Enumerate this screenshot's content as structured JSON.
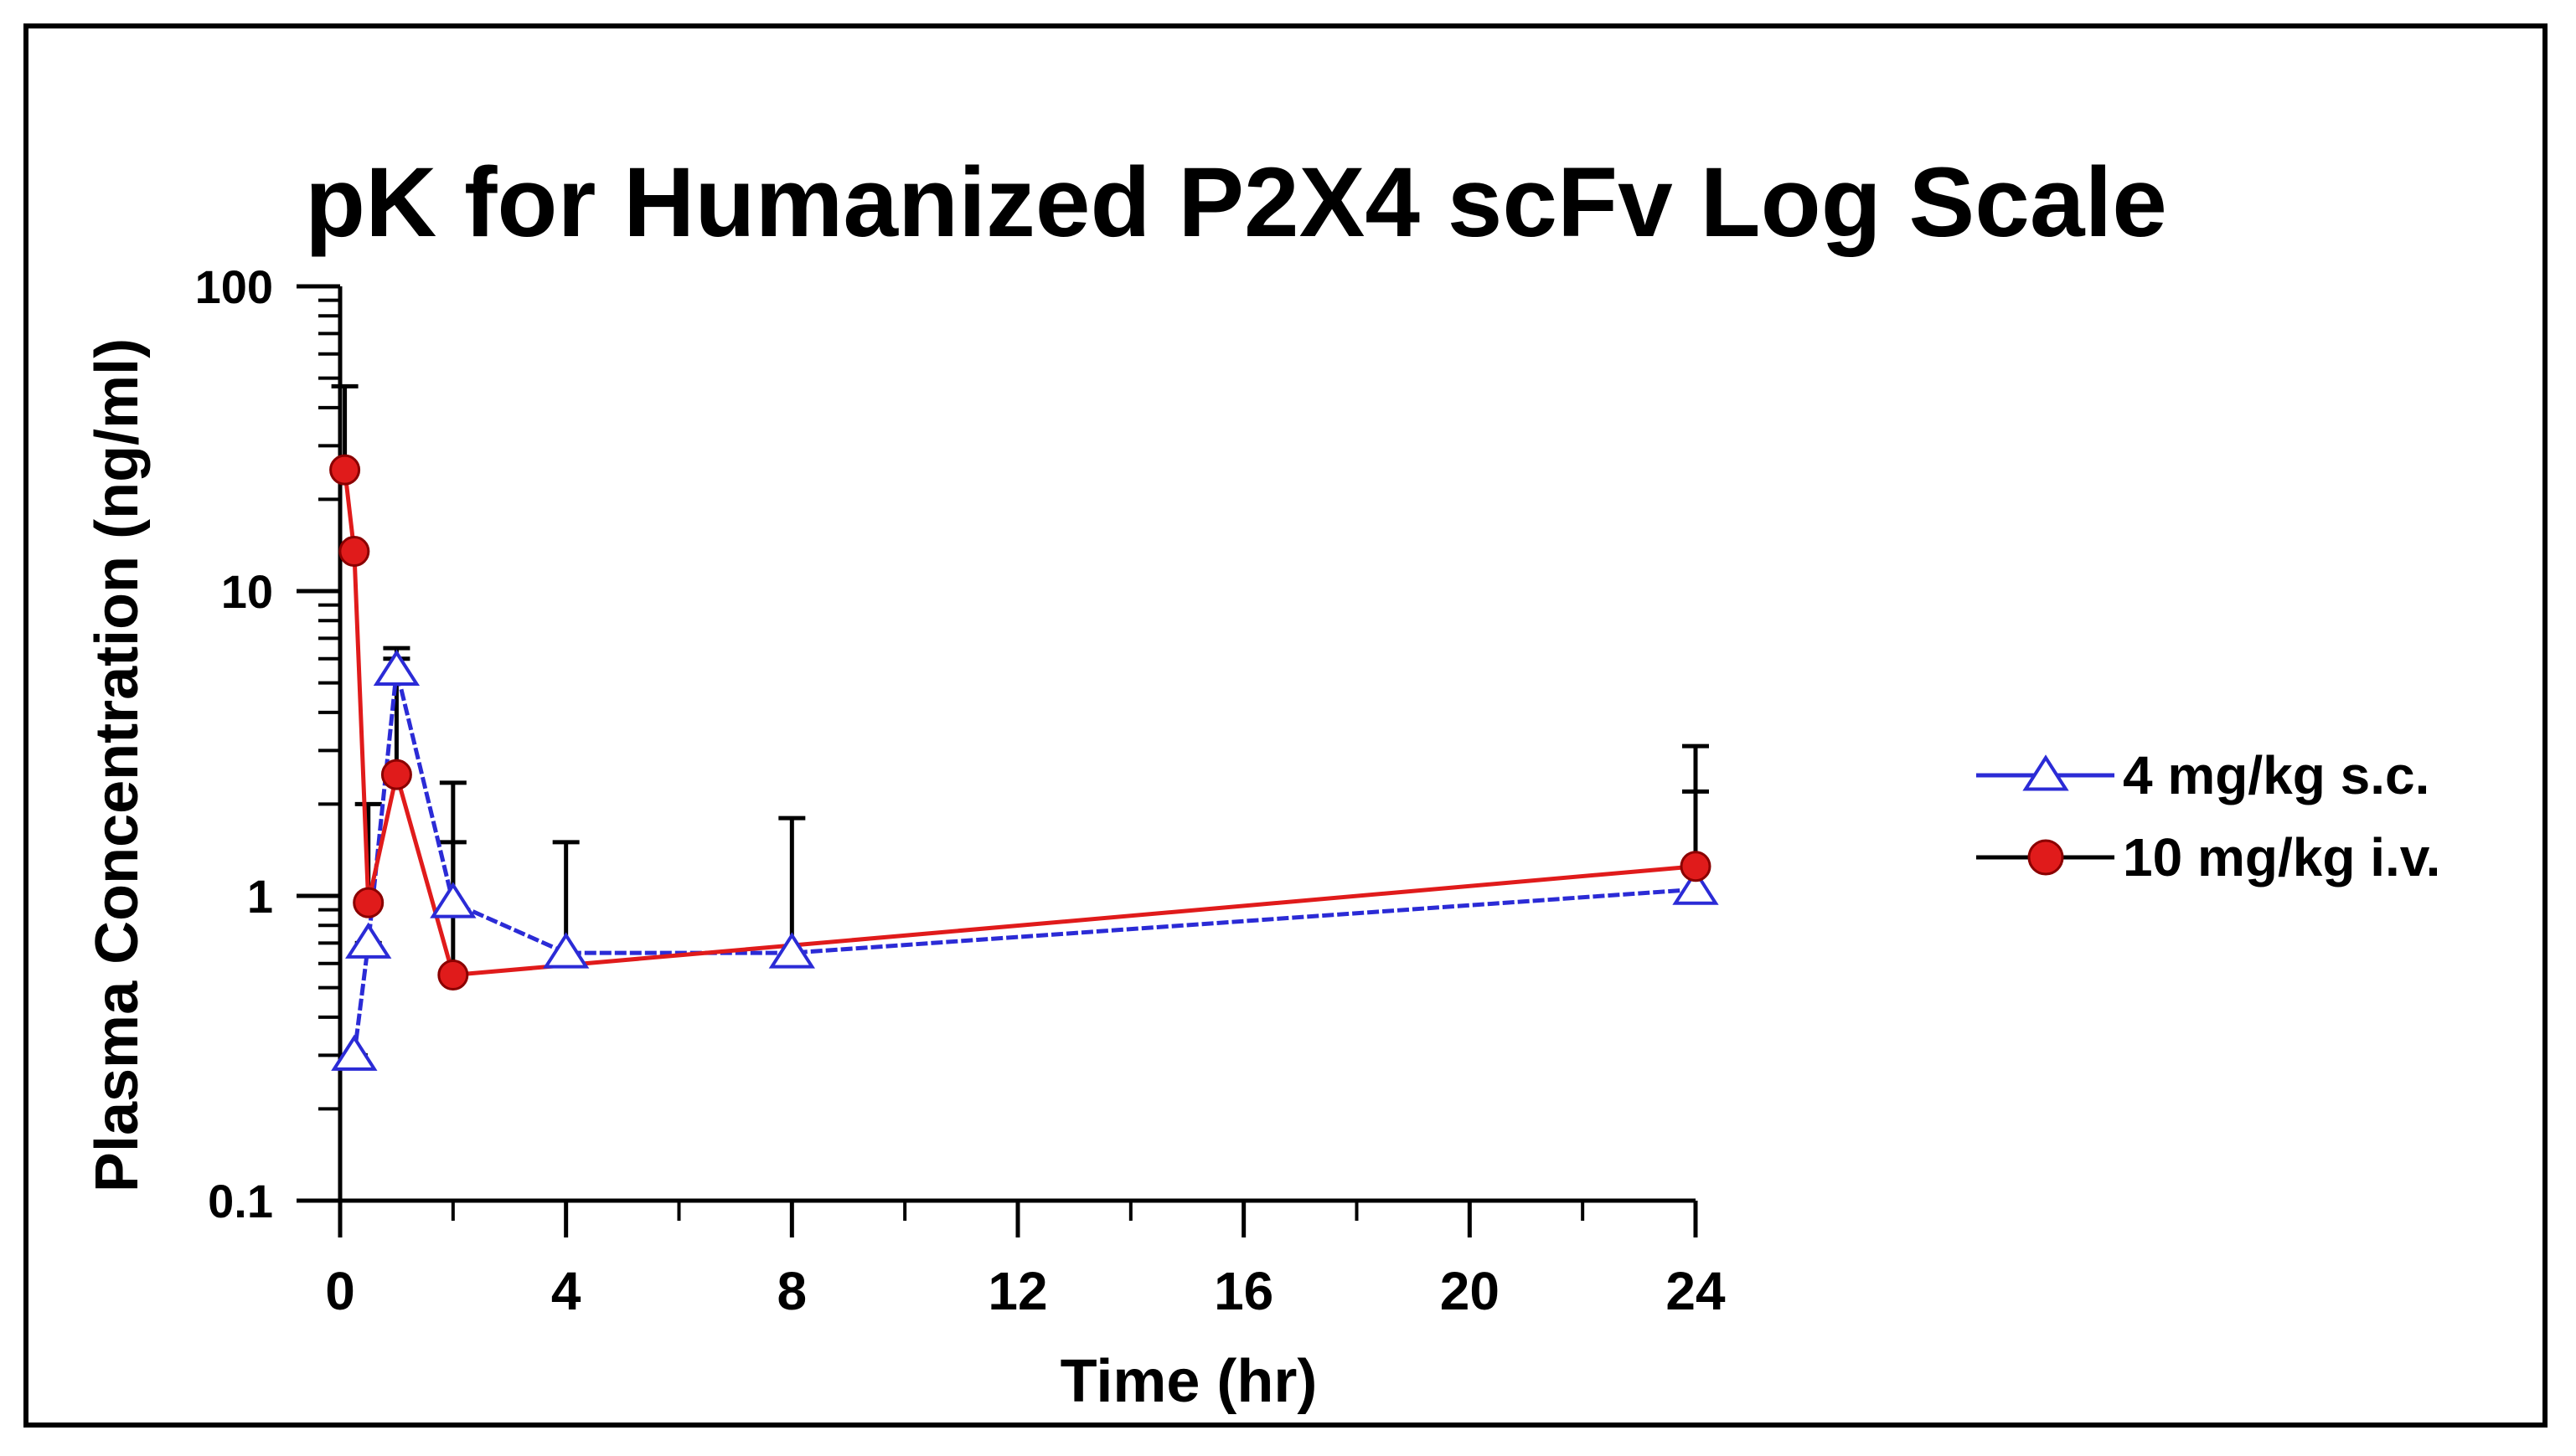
{
  "chart_data": {
    "type": "line",
    "title": "pK for Humanized P2X4 scFv Log Scale",
    "xlabel": "Time (hr)",
    "ylabel": "Plasma Concentration (ng/ml)",
    "x_ticks": [
      0,
      4,
      8,
      12,
      16,
      20,
      24
    ],
    "xlim": [
      0,
      24
    ],
    "y_scale": "log",
    "y_ticks": [
      0.1,
      1,
      10,
      100
    ],
    "y_tick_labels": [
      "0.1",
      "1",
      "10",
      "100"
    ],
    "ylim": [
      0.1,
      100
    ],
    "legend_position": "right",
    "series": [
      {
        "name": "4 mg/kg s.c.",
        "marker": "triangle-open",
        "line_color": "#2b2bd6",
        "marker_color": "#2b2bd6",
        "x": [
          0.25,
          0.5,
          1,
          2,
          4,
          8,
          24
        ],
        "y": [
          0.3,
          0.7,
          5.5,
          0.95,
          0.65,
          0.65,
          1.05
        ],
        "y_err": [
          0.3,
          0.7,
          6.5,
          2.35,
          1.5,
          1.8,
          3.1
        ]
      },
      {
        "name": "10 mg/kg i.v.",
        "marker": "circle-filled",
        "line_color": "#e01b1b",
        "marker_color": "#e01b1b",
        "x": [
          0.083,
          0.25,
          0.5,
          1,
          2,
          24
        ],
        "y": [
          25,
          13.5,
          0.95,
          2.5,
          0.55,
          1.25
        ],
        "y_err": [
          47,
          14,
          2,
          6,
          1.5,
          2.2
        ]
      }
    ]
  }
}
